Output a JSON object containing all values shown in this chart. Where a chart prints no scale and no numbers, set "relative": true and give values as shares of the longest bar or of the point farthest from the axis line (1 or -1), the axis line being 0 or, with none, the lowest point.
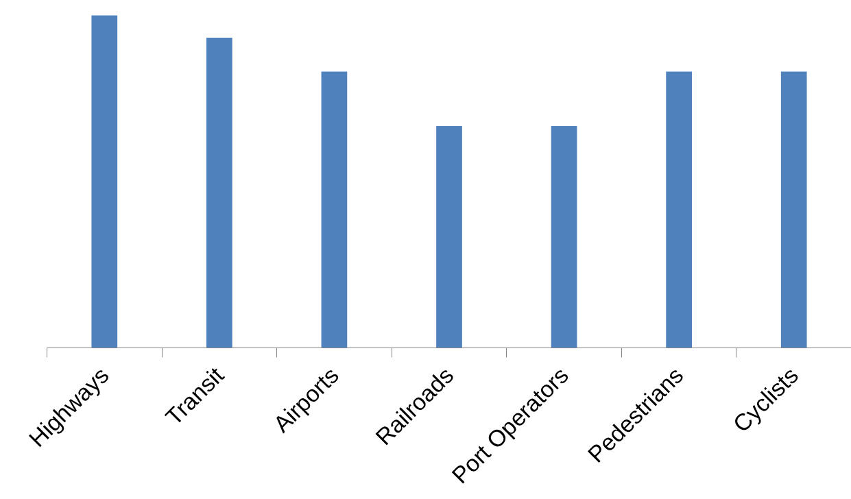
{
  "chart_data": {
    "type": "bar",
    "relative": true,
    "categories": [
      "Highways",
      "Transit",
      "Airports",
      "Railroads",
      "Port Operators",
      "Pedestrians",
      "Cyclists"
    ],
    "values": [
      1,
      0.933,
      0.831,
      0.667,
      0.667,
      0.831,
      0.831
    ],
    "color": "#4f81bd",
    "grid": false
  }
}
